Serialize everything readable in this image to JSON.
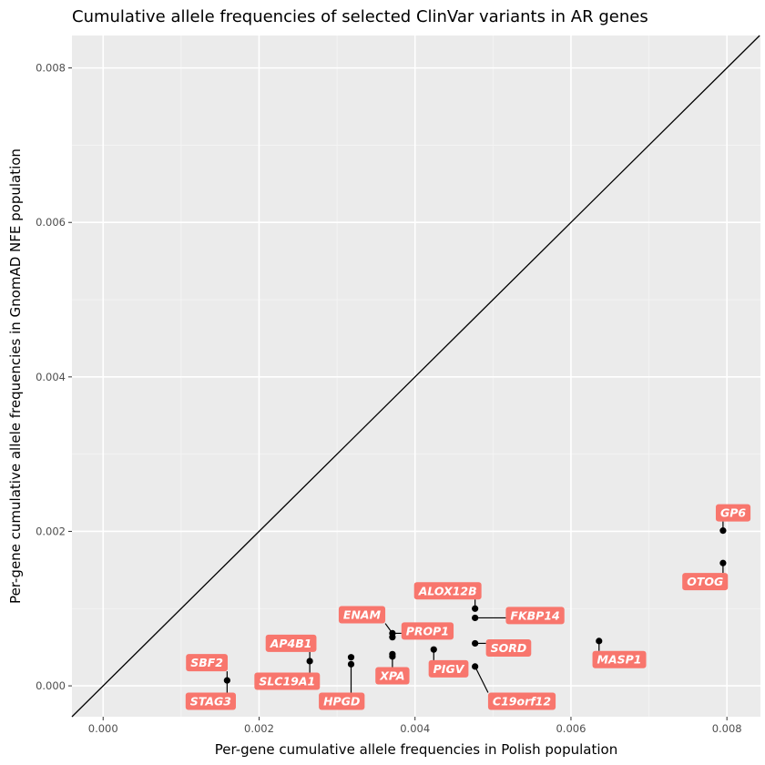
{
  "chart_data": {
    "type": "scatter",
    "title": "Cumulative allele frequencies of selected ClinVar variants in AR genes",
    "xlabel": "Per-gene cumulative allele frequencies in Polish population",
    "ylabel": "Per-gene cumulative allele frequencies in GnomAD NFE population",
    "xlim": [
      -0.0004,
      0.00843
    ],
    "ylim": [
      -0.0004,
      0.00842
    ],
    "x_ticks": [
      "0.000",
      "0.002",
      "0.004",
      "0.006",
      "0.008"
    ],
    "y_ticks": [
      "0.000",
      "0.002",
      "0.004",
      "0.006",
      "0.008"
    ],
    "grid": true,
    "background": "#ebebeb",
    "label_color": "#f8766d",
    "reference_line": "y = x",
    "points": [
      {
        "x": 0.00159,
        "y": 7e-05
      },
      {
        "x": 0.00265,
        "y": 0.00032
      },
      {
        "x": 0.00318,
        "y": 0.00037
      },
      {
        "x": 0.00318,
        "y": 0.00028
      },
      {
        "x": 0.00371,
        "y": 0.00068
      },
      {
        "x": 0.00371,
        "y": 0.00063
      },
      {
        "x": 0.00371,
        "y": 0.00041
      },
      {
        "x": 0.00371,
        "y": 0.00038
      },
      {
        "x": 0.00424,
        "y": 0.00047
      },
      {
        "x": 0.00477,
        "y": 0.001
      },
      {
        "x": 0.00477,
        "y": 0.00088
      },
      {
        "x": 0.00477,
        "y": 0.00055
      },
      {
        "x": 0.00477,
        "y": 0.00025
      },
      {
        "x": 0.00636,
        "y": 0.00058
      },
      {
        "x": 0.00795,
        "y": 0.00201
      },
      {
        "x": 0.00795,
        "y": 0.00159
      }
    ],
    "labels": [
      {
        "text": "SBF2",
        "x": 0.00159,
        "y": 7e-05,
        "lx": 0.00133,
        "ly": 0.0003
      },
      {
        "text": "STAG3",
        "x": 0.00159,
        "y": 7e-05,
        "lx": 0.00138,
        "ly": -0.0002
      },
      {
        "text": "AP4B1",
        "x": 0.00265,
        "y": 0.00032,
        "lx": 0.00241,
        "ly": 0.00055
      },
      {
        "text": "SLC19A1",
        "x": 0.00265,
        "y": 0.00032,
        "lx": 0.00236,
        "ly": 6e-05
      },
      {
        "text": "HPGD",
        "x": 0.00318,
        "y": 0.00028,
        "lx": 0.00306,
        "ly": -0.0002
      },
      {
        "text": "ENAM",
        "x": 0.00371,
        "y": 0.00068,
        "lx": 0.00332,
        "ly": 0.00092
      },
      {
        "text": "PROP1",
        "x": 0.00371,
        "y": 0.00068,
        "lx": 0.00416,
        "ly": 0.00071
      },
      {
        "text": "XPA",
        "x": 0.00371,
        "y": 0.00038,
        "lx": 0.00371,
        "ly": 0.00013
      },
      {
        "text": "PIGV",
        "x": 0.00424,
        "y": 0.00047,
        "lx": 0.00443,
        "ly": 0.00022
      },
      {
        "text": "ALOX12B",
        "x": 0.00477,
        "y": 0.001,
        "lx": 0.00442,
        "ly": 0.00123
      },
      {
        "text": "FKBP14",
        "x": 0.00477,
        "y": 0.00088,
        "lx": 0.00554,
        "ly": 0.00091
      },
      {
        "text": "SORD",
        "x": 0.00477,
        "y": 0.00055,
        "lx": 0.0052,
        "ly": 0.00049
      },
      {
        "text": "C19orf12",
        "x": 0.00477,
        "y": 0.00025,
        "lx": 0.00537,
        "ly": -0.0002
      },
      {
        "text": "MASP1",
        "x": 0.00636,
        "y": 0.00058,
        "lx": 0.00662,
        "ly": 0.00034
      },
      {
        "text": "GP6",
        "x": 0.00795,
        "y": 0.00201,
        "lx": 0.00808,
        "ly": 0.00224
      },
      {
        "text": "OTOG",
        "x": 0.00795,
        "y": 0.00159,
        "lx": 0.00772,
        "ly": 0.00135
      }
    ]
  }
}
